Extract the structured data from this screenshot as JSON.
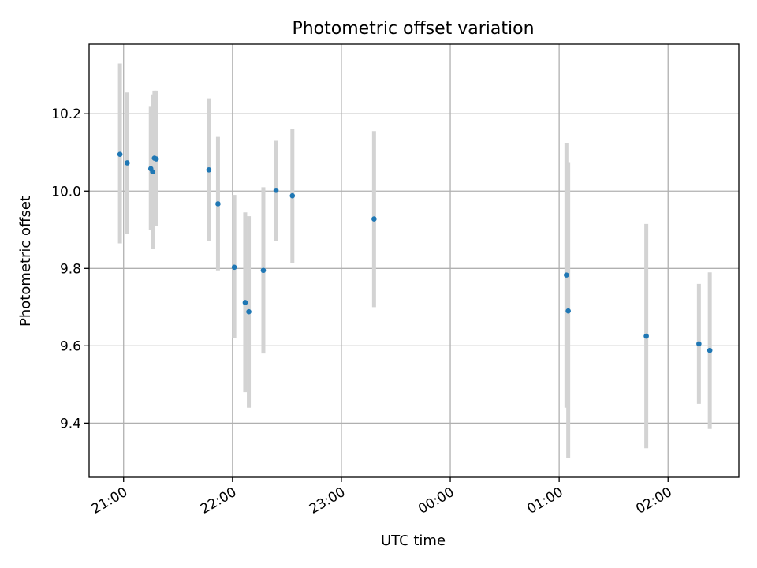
{
  "chart_data": {
    "type": "scatter",
    "title": "Photometric offset variation",
    "xlabel": "UTC time",
    "ylabel": "Photometric offset",
    "x_unit": "UTC time (HH:MM)",
    "x_ticks": [
      "21:00",
      "22:00",
      "23:00",
      "00:00",
      "01:00",
      "02:00"
    ],
    "x_tick_values": [
      "20:58",
      "21:58",
      "22:58",
      "23:58",
      "00:58",
      "01:58"
    ],
    "xlim": [
      "20:39",
      "02:37"
    ],
    "y_ticks": [
      "9.4",
      "9.6",
      "9.8",
      "10.0",
      "10.2"
    ],
    "ylim": [
      9.26,
      10.38
    ],
    "grid": true,
    "marker_color": "#1f77b4",
    "errorbar_color": "#d3d3d3",
    "points": [
      {
        "x": "20:56",
        "y": 10.095,
        "ylo": 9.865,
        "yhi": 10.33
      },
      {
        "x": "21:00",
        "y": 10.073,
        "ylo": 9.89,
        "yhi": 10.255
      },
      {
        "x": "21:13",
        "y": 10.058,
        "ylo": 9.9,
        "yhi": 10.22
      },
      {
        "x": "21:14",
        "y": 10.05,
        "ylo": 9.85,
        "yhi": 10.25
      },
      {
        "x": "21:15",
        "y": 10.085,
        "ylo": 9.91,
        "yhi": 10.26
      },
      {
        "x": "21:16",
        "y": 10.083,
        "ylo": 9.91,
        "yhi": 10.26
      },
      {
        "x": "21:45",
        "y": 10.055,
        "ylo": 9.87,
        "yhi": 10.24
      },
      {
        "x": "21:50",
        "y": 9.967,
        "ylo": 9.795,
        "yhi": 10.14
      },
      {
        "x": "21:59",
        "y": 9.803,
        "ylo": 9.62,
        "yhi": 9.99
      },
      {
        "x": "22:05",
        "y": 9.712,
        "ylo": 9.48,
        "yhi": 9.945
      },
      {
        "x": "22:07",
        "y": 9.688,
        "ylo": 9.44,
        "yhi": 9.935
      },
      {
        "x": "22:15",
        "y": 9.795,
        "ylo": 9.58,
        "yhi": 10.01
      },
      {
        "x": "22:22",
        "y": 10.002,
        "ylo": 9.87,
        "yhi": 10.13
      },
      {
        "x": "22:31",
        "y": 9.988,
        "ylo": 9.815,
        "yhi": 10.16
      },
      {
        "x": "23:16",
        "y": 9.928,
        "ylo": 9.7,
        "yhi": 10.155
      },
      {
        "x": "01:02",
        "y": 9.783,
        "ylo": 9.44,
        "yhi": 10.125
      },
      {
        "x": "01:03",
        "y": 9.69,
        "ylo": 9.31,
        "yhi": 10.075
      },
      {
        "x": "01:46",
        "y": 9.625,
        "ylo": 9.335,
        "yhi": 9.915
      },
      {
        "x": "02:15",
        "y": 9.605,
        "ylo": 9.45,
        "yhi": 9.76
      },
      {
        "x": "02:21",
        "y": 9.588,
        "ylo": 9.385,
        "yhi": 9.79
      }
    ]
  }
}
